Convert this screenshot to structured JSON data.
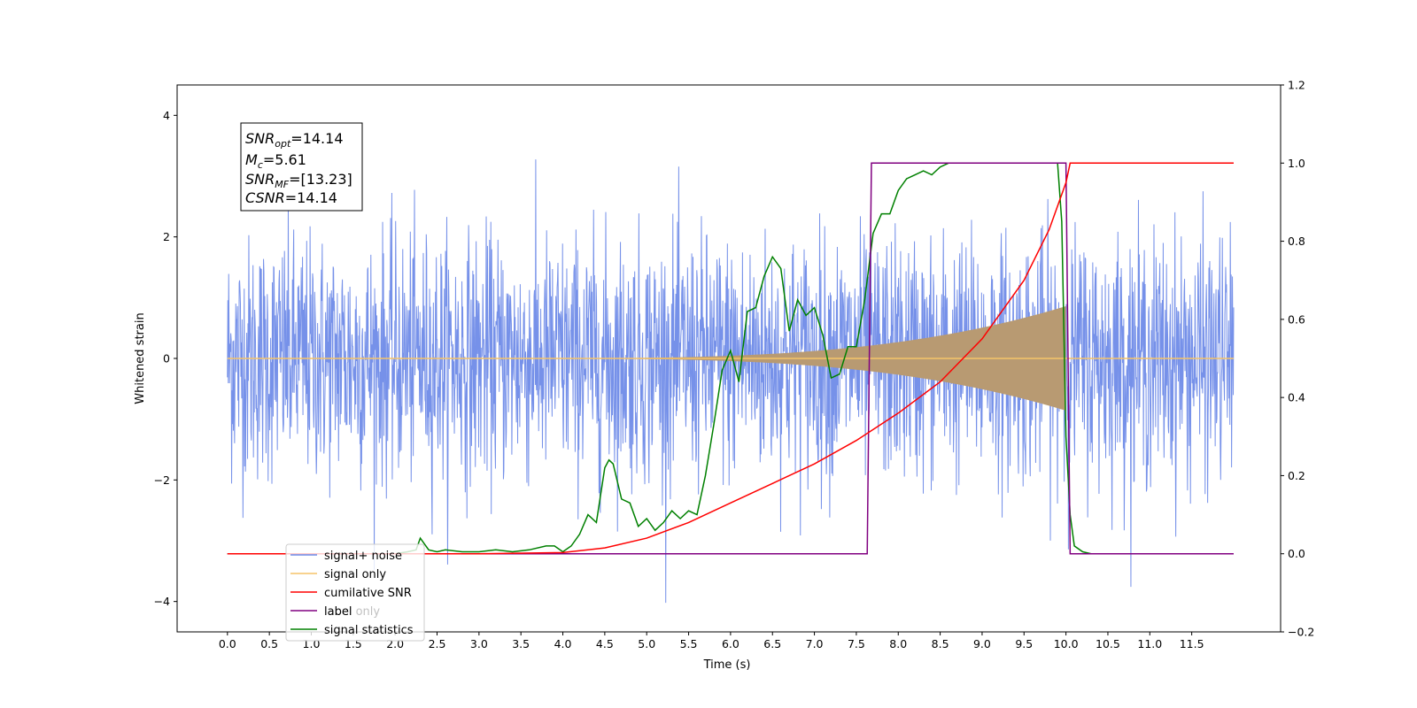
{
  "chart_data": {
    "type": "line",
    "xlabel": "Time (s)",
    "ylabel_left": "Whitened strain",
    "ylabel_right": "",
    "xlim": [
      -0.6,
      12.56
    ],
    "ylim_left": [
      -4.5,
      4.5
    ],
    "ylim_right": [
      -0.2,
      1.2
    ],
    "x_ticks": [
      "0.0",
      "0.5",
      "1.0",
      "1.5",
      "2.0",
      "2.5",
      "3.0",
      "3.5",
      "4.0",
      "4.5",
      "5.0",
      "5.5",
      "6.0",
      "6.5",
      "7.0",
      "7.5",
      "8.0",
      "8.5",
      "9.0",
      "9.5",
      "10.0",
      "10.5",
      "11.0",
      "11.5"
    ],
    "y_left_ticks": [
      "4",
      "2",
      "0",
      "−2",
      "−4"
    ],
    "y_right_ticks": [
      "1.2",
      "1.0",
      "0.8",
      "0.6",
      "0.4",
      "0.2",
      "0.0",
      "−0.2"
    ],
    "grid": false,
    "legend_position": "lower-left",
    "annotation": {
      "snr_opt": {
        "sym": "SNR",
        "sub": "opt",
        "val": "=14.14"
      },
      "mc": {
        "sym": "M",
        "sub": "c",
        "val": "=5.61"
      },
      "snr_mf": {
        "sym": "SNR",
        "sub": "MF",
        "val": "=[13.23]"
      },
      "csnr": {
        "sym": "CSNR",
        "sub": "",
        "val": "=14.14"
      }
    },
    "series": [
      {
        "name": "signal+ noise",
        "color": "#6f8be8",
        "axis": "left",
        "noise_sigma": 1.0,
        "x_range": [
          0.0,
          12.0
        ]
      },
      {
        "name": "signal only",
        "color": "#f5c469",
        "axis": "left",
        "chirp_end": 10.0,
        "peak_amplitude": 0.85
      },
      {
        "name": "cumilative SNR",
        "color": "#ff0000",
        "axis": "right",
        "x": [
          0.0,
          3.0,
          4.0,
          4.5,
          5.0,
          5.5,
          6.0,
          6.5,
          7.0,
          7.5,
          8.0,
          8.5,
          9.0,
          9.5,
          9.8,
          10.0,
          10.05,
          12.0
        ],
        "y": [
          0.0,
          0.0,
          0.003,
          0.015,
          0.04,
          0.08,
          0.13,
          0.18,
          0.23,
          0.29,
          0.36,
          0.44,
          0.55,
          0.7,
          0.83,
          0.95,
          1.0,
          1.0
        ]
      },
      {
        "name": "label",
        "color": "#800080",
        "axis": "right",
        "x": [
          0.0,
          7.63,
          7.68,
          10.0,
          10.05,
          12.0
        ],
        "y": [
          0.0,
          0.0,
          1.0,
          1.0,
          0.0,
          0.0
        ]
      },
      {
        "name": "label only",
        "color": "#800080",
        "axis": "right",
        "hidden": true
      },
      {
        "name": "signal statistics",
        "color": "#008000",
        "axis": "right",
        "x": [
          0.0,
          2.0,
          2.15,
          2.25,
          2.3,
          2.4,
          2.5,
          2.6,
          2.8,
          3.0,
          3.2,
          3.4,
          3.6,
          3.8,
          3.9,
          4.0,
          4.1,
          4.2,
          4.3,
          4.4,
          4.5,
          4.55,
          4.6,
          4.7,
          4.8,
          4.9,
          5.0,
          5.1,
          5.2,
          5.3,
          5.4,
          5.5,
          5.6,
          5.7,
          5.8,
          5.9,
          6.0,
          6.1,
          6.2,
          6.3,
          6.4,
          6.5,
          6.6,
          6.7,
          6.8,
          6.9,
          7.0,
          7.1,
          7.2,
          7.3,
          7.4,
          7.5,
          7.6,
          7.7,
          7.8,
          7.9,
          8.0,
          8.1,
          8.2,
          8.3,
          8.4,
          8.5,
          8.6,
          8.8,
          9.0,
          9.5,
          9.9,
          9.95,
          10.0,
          10.05,
          10.1,
          10.2,
          10.3,
          11.0,
          11.5,
          11.9
        ],
        "y": [
          0.0,
          0.0,
          0.005,
          0.01,
          0.04,
          0.01,
          0.005,
          0.01,
          0.005,
          0.005,
          0.01,
          0.005,
          0.01,
          0.02,
          0.02,
          0.005,
          0.02,
          0.05,
          0.1,
          0.08,
          0.22,
          0.24,
          0.23,
          0.14,
          0.13,
          0.07,
          0.09,
          0.06,
          0.08,
          0.11,
          0.09,
          0.11,
          0.1,
          0.2,
          0.33,
          0.47,
          0.52,
          0.44,
          0.62,
          0.63,
          0.71,
          0.76,
          0.73,
          0.57,
          0.65,
          0.61,
          0.63,
          0.56,
          0.45,
          0.46,
          0.53,
          0.53,
          0.65,
          0.82,
          0.87,
          0.87,
          0.93,
          0.96,
          0.97,
          0.98,
          0.97,
          0.99,
          1.0,
          1.0,
          1.0,
          1.0,
          1.0,
          0.85,
          0.3,
          0.1,
          0.02,
          0.005,
          0.0,
          0.0,
          0.0,
          0.0
        ]
      }
    ]
  }
}
